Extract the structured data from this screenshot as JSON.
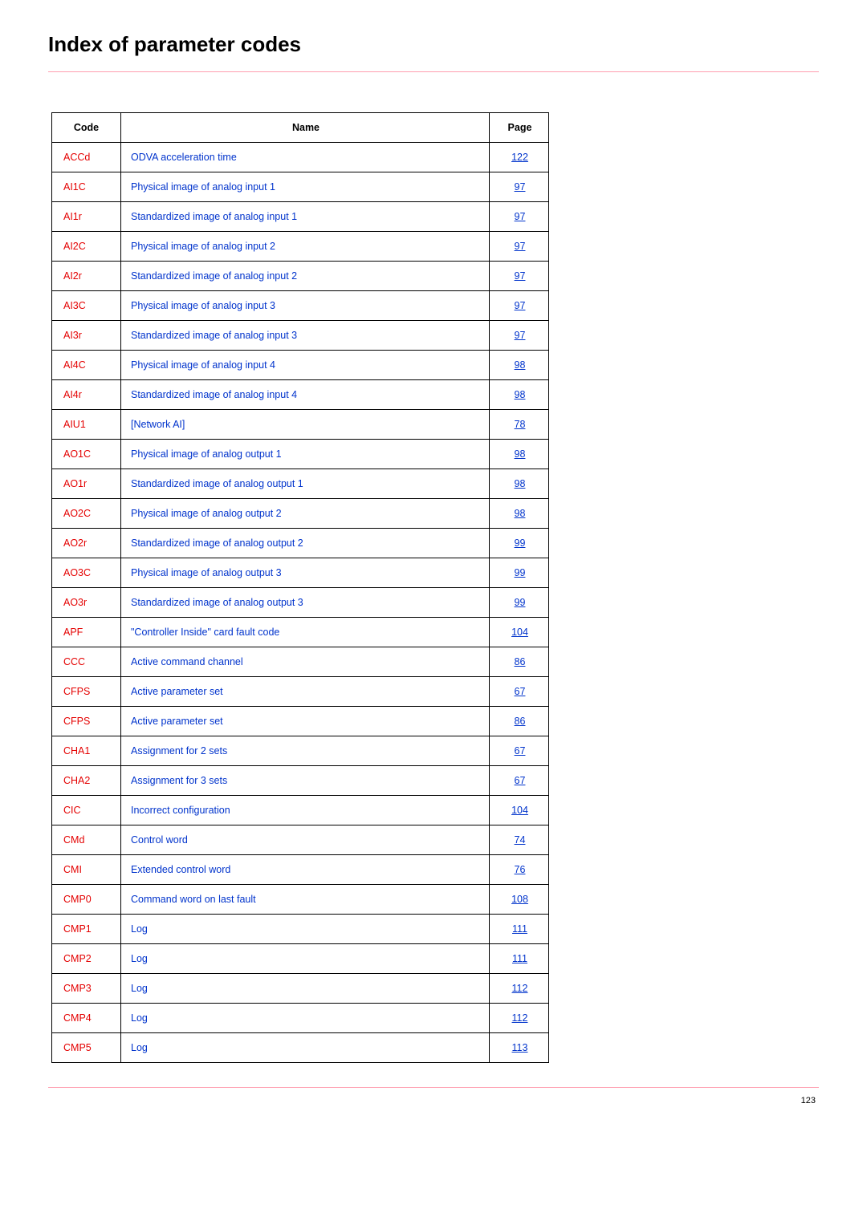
{
  "title": "Index of parameter codes",
  "hr_color": "#ff9eb0",
  "columns": {
    "code": "Code",
    "name": "Name",
    "page": "Page"
  },
  "rows": [
    {
      "code": "ACCd",
      "name": "ODVA acceleration time",
      "page": "122"
    },
    {
      "code": "AI1C",
      "name": "Physical image of analog input 1",
      "page": "97"
    },
    {
      "code": "AI1r",
      "name": "Standardized image of analog input 1",
      "page": "97"
    },
    {
      "code": "AI2C",
      "name": "Physical image of analog input 2",
      "page": "97"
    },
    {
      "code": "AI2r",
      "name": "Standardized image of analog input 2",
      "page": "97"
    },
    {
      "code": "AI3C",
      "name": "Physical image of analog input 3",
      "page": "97"
    },
    {
      "code": "AI3r",
      "name": "Standardized image of analog input 3",
      "page": "97"
    },
    {
      "code": "AI4C",
      "name": "Physical image of analog input 4",
      "page": "98"
    },
    {
      "code": "AI4r",
      "name": "Standardized image of analog input 4",
      "page": "98"
    },
    {
      "code": "AIU1",
      "name": "[Network AI]",
      "page": "78"
    },
    {
      "code": "AO1C",
      "name": "Physical image of analog output 1",
      "page": "98"
    },
    {
      "code": "AO1r",
      "name": "Standardized image of analog output 1",
      "page": "98"
    },
    {
      "code": "AO2C",
      "name": "Physical image of analog output 2",
      "page": "98"
    },
    {
      "code": "AO2r",
      "name": "Standardized image of analog output 2",
      "page": "99"
    },
    {
      "code": "AO3C",
      "name": "Physical image of analog output 3",
      "page": "99"
    },
    {
      "code": "AO3r",
      "name": "Standardized image of analog output 3",
      "page": "99"
    },
    {
      "code": "APF",
      "name": "\"Controller Inside\" card fault code",
      "page": "104"
    },
    {
      "code": "CCC",
      "name": "Active command channel",
      "page": "86"
    },
    {
      "code": "CFPS",
      "name": "Active parameter set",
      "page": "67"
    },
    {
      "code": "CFPS",
      "name": "Active parameter set",
      "page": "86"
    },
    {
      "code": "CHA1",
      "name": "Assignment for 2 sets",
      "page": "67"
    },
    {
      "code": "CHA2",
      "name": "Assignment for 3 sets",
      "page": "67"
    },
    {
      "code": "CIC",
      "name": "Incorrect configuration",
      "page": "104"
    },
    {
      "code": "CMd",
      "name": "Control word",
      "page": "74"
    },
    {
      "code": "CMI",
      "name": "Extended control word",
      "page": "76"
    },
    {
      "code": "CMP0",
      "name": "Command word on last fault",
      "page": "108"
    },
    {
      "code": "CMP1",
      "name": "Log",
      "page": "111"
    },
    {
      "code": "CMP2",
      "name": "Log",
      "page": "111"
    },
    {
      "code": "CMP3",
      "name": "Log",
      "page": "112"
    },
    {
      "code": "CMP4",
      "name": "Log",
      "page": "112"
    },
    {
      "code": "CMP5",
      "name": "Log",
      "page": "113"
    }
  ],
  "page_number": "123"
}
